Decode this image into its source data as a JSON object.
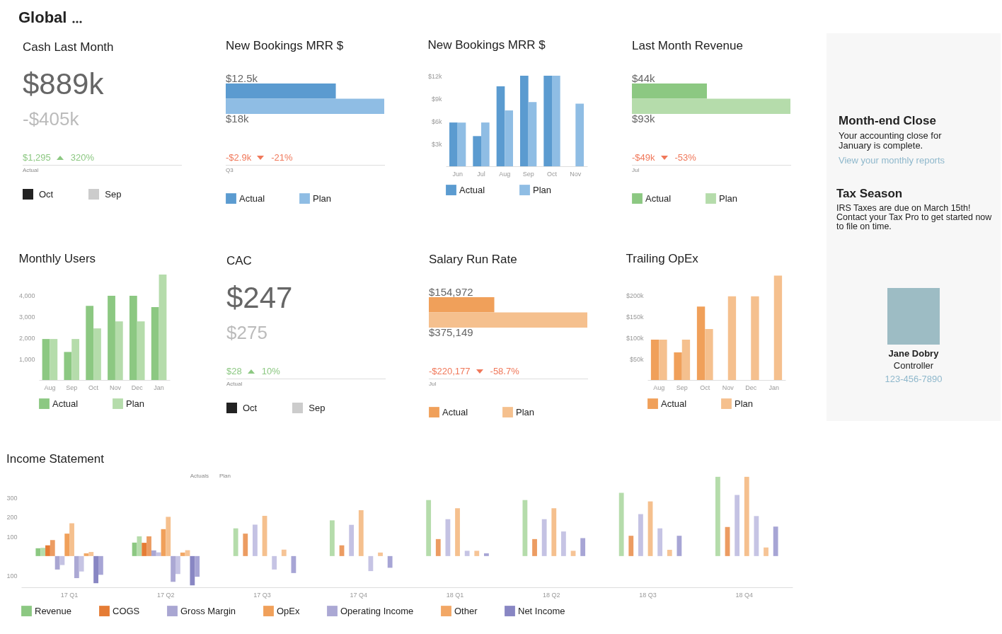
{
  "chart_data": [
    {
      "type": "other",
      "title": "Global"
    },
    {
      "type": "other",
      "title": "Cash Last Month",
      "annotations": [
        "$889k",
        "-$405k",
        "$1,295",
        "320%",
        "Actual"
      ],
      "legend": "bottom",
      "series": [
        {
          "name": "Oct",
          "color": "#222222"
        },
        {
          "name": "Sep",
          "color": "#cccccc"
        }
      ]
    },
    {
      "type": "bar",
      "orientation": "horizontal",
      "stacked": true,
      "title": "New Bookings MRR $",
      "categories": [
        null,
        null
      ],
      "tick_labels": false,
      "legend": "bottom",
      "annotations": [
        "-$2.9k",
        "-21%",
        "Q3"
      ],
      "series": [
        {
          "name": "Actual",
          "color": "#5b9bd0",
          "values": [
            12.5,
            null
          ],
          "value_labels": [
            "$12.5k",
            null
          ]
        },
        {
          "name": "Plan",
          "color": "#8fbde4",
          "values": [
            null,
            18
          ],
          "value_labels": [
            null,
            "$18k"
          ]
        }
      ]
    },
    {
      "type": "bar",
      "title": "New Bookings MRR $",
      "categories": [
        "Jun",
        "Jul",
        "Aug",
        "Sep",
        "Oct",
        "Nov"
      ],
      "ylim": [
        0,
        12
      ],
      "yticks": [
        {
          "value": 3,
          "label": "$3k"
        },
        {
          "value": 6,
          "label": "$6k"
        },
        {
          "value": 9,
          "label": "$9k"
        },
        {
          "value": 12,
          "label": "$12k"
        }
      ],
      "legend": "bottom",
      "series": [
        {
          "name": "Actual",
          "color": "#5b9bd0",
          "values": [
            5.8,
            4.0,
            10.6,
            12,
            12,
            null
          ]
        },
        {
          "name": "Plan",
          "color": "#8fbde4",
          "values": [
            5.8,
            5.8,
            7.4,
            8.5,
            12,
            8.3
          ]
        }
      ]
    },
    {
      "type": "bar",
      "orientation": "horizontal",
      "stacked": true,
      "title": "Last Month Revenue",
      "categories": [
        null,
        null
      ],
      "tick_labels": false,
      "legend": "bottom",
      "annotations": [
        "-$49k",
        "-53%",
        "Jul"
      ],
      "series": [
        {
          "name": "Actual",
          "color": "#8cc882",
          "values": [
            44,
            null
          ],
          "value_labels": [
            "$44k",
            null
          ]
        },
        {
          "name": "Plan",
          "color": "#b5dcab",
          "values": [
            null,
            93
          ],
          "value_labels": [
            null,
            "$93k"
          ]
        }
      ]
    },
    {
      "type": "other",
      "annotations": [
        "Month-end Close",
        "Your accounting close for January is complete.",
        "View your monthly reports",
        "Tax Season",
        "IRS Taxes are due on March 15th! Contact your Tax Pro to get started now to file on time.",
        "Jane Dobry",
        "Controller",
        "123-456-7890"
      ]
    },
    {
      "type": "bar",
      "title": "Monthly Users",
      "categories": [
        "Aug",
        "Sep",
        "Oct",
        "Nov",
        "Dec",
        "Jan"
      ],
      "ylim": [
        0,
        5000
      ],
      "yticks": [
        {
          "value": 1000,
          "label": "1,000"
        },
        {
          "value": 2000,
          "label": "2,000"
        },
        {
          "value": 3000,
          "label": "3,000"
        },
        {
          "value": 4000,
          "label": "4,000"
        }
      ],
      "legend": "bottom",
      "series": [
        {
          "name": "Actual",
          "color": "#8cc882",
          "values": [
            1930,
            1320,
            3490,
            3970,
            3970,
            3430
          ]
        },
        {
          "name": "Plan",
          "color": "#b5dcab",
          "values": [
            1930,
            1930,
            2430,
            2760,
            2760,
            4970
          ]
        }
      ]
    },
    {
      "type": "other",
      "title": "CAC",
      "annotations": [
        "$247",
        "$275",
        "$28",
        "10%",
        "Actual"
      ],
      "legend": "bottom",
      "series": [
        {
          "name": "Oct",
          "color": "#222222"
        },
        {
          "name": "Sep",
          "color": "#cccccc"
        }
      ]
    },
    {
      "type": "bar",
      "orientation": "horizontal",
      "stacked": true,
      "title": "Salary Run Rate",
      "categories": [
        null,
        null
      ],
      "tick_labels": false,
      "legend": "bottom",
      "annotations": [
        "-$220,177",
        "-58.7%",
        "Jul"
      ],
      "series": [
        {
          "name": "Actual",
          "color": "#f0a05a",
          "values": [
            154972,
            null
          ],
          "value_labels": [
            "$154,972",
            null
          ]
        },
        {
          "name": "Plan",
          "color": "#f5c08e",
          "values": [
            null,
            375149
          ],
          "value_labels": [
            null,
            "$375,149"
          ]
        }
      ]
    },
    {
      "type": "bar",
      "title": "Trailing OpEx",
      "categories": [
        "Aug",
        "Sep",
        "Oct",
        "Nov",
        "Dec",
        "Jan"
      ],
      "ylim": [
        0,
        250
      ],
      "yticks": [
        {
          "value": 50,
          "label": "$50k"
        },
        {
          "value": 100,
          "label": "$100k"
        },
        {
          "value": 150,
          "label": "$150k"
        },
        {
          "value": 200,
          "label": "$200k"
        }
      ],
      "legend": "bottom",
      "series": [
        {
          "name": "Actual",
          "color": "#f0a05a",
          "values": [
            95,
            65,
            173,
            null,
            null,
            null
          ]
        },
        {
          "name": "Plan",
          "color": "#f5c08e",
          "values": [
            95,
            95,
            120,
            197,
            197,
            246
          ]
        }
      ]
    },
    {
      "type": "bar",
      "title": "Income Statement",
      "categories": [
        "17 Q1",
        "17 Q2",
        "17 Q3",
        "17 Q4",
        "18 Q1",
        "18 Q2",
        "18 Q3",
        "18 Q4"
      ],
      "ylim": [
        -160,
        420
      ],
      "yticks": [
        {
          "value": -100,
          "label": "100"
        },
        100,
        200,
        300
      ],
      "legend": "bottom",
      "annotations": [
        "Actuals",
        "Plan"
      ],
      "series": [
        {
          "name": "Revenue",
          "color": "#8cc882",
          "values": [
            40,
            69,
            null,
            null,
            null,
            null,
            null,
            null
          ]
        },
        {
          "color": "#b5dcab",
          "values": [
            42,
            101,
            142,
            183,
            287,
            287,
            324,
            406
          ]
        },
        {
          "name": "COGS",
          "color": "#e57c35",
          "values": [
            55,
            68,
            null,
            null,
            null,
            null,
            null,
            null
          ]
        },
        {
          "color": "#ec9c62",
          "values": [
            82,
            101,
            115,
            55,
            87,
            87,
            104,
            149
          ]
        },
        {
          "name": "Gross Margin",
          "color": "#a9a6d2",
          "values": [
            -69,
            29,
            null,
            null,
            null,
            null,
            null,
            null
          ]
        },
        {
          "color": "#c4c2e3",
          "values": [
            -46,
            19,
            161,
            160,
            189,
            189,
            215,
            313
          ]
        },
        {
          "name": "OpEx",
          "color": "#f0a05a",
          "values": [
            115,
            138,
            null,
            null,
            null,
            null,
            null,
            null
          ]
        },
        {
          "color": "#f5c08e",
          "values": [
            168,
            201,
            206,
            235,
            245,
            245,
            280,
            406
          ]
        },
        {
          "name": "Operating Income",
          "color": "#aba8d4",
          "values": [
            -113,
            -132,
            null,
            null,
            null,
            null,
            null,
            null
          ]
        },
        {
          "color": "#c6c4e4",
          "values": [
            -79,
            -92,
            -69,
            -77,
            27,
            126,
            142,
            205
          ]
        },
        {
          "name": "Other",
          "color": "#f2a765",
          "values": [
            14,
            18,
            null,
            null,
            null,
            null,
            null,
            null
          ]
        },
        {
          "color": "#f6c496",
          "values": [
            21,
            30,
            33,
            18,
            27,
            27,
            32,
            44
          ]
        },
        {
          "name": "Net Income",
          "color": "#8886c3",
          "values": [
            -139,
            -150,
            null,
            null,
            null,
            null,
            null,
            null
          ]
        },
        {
          "color": "#a7a5d5",
          "values": [
            -96,
            -106,
            -87,
            -60,
            14,
            92,
            104,
            151
          ]
        }
      ]
    }
  ]
}
